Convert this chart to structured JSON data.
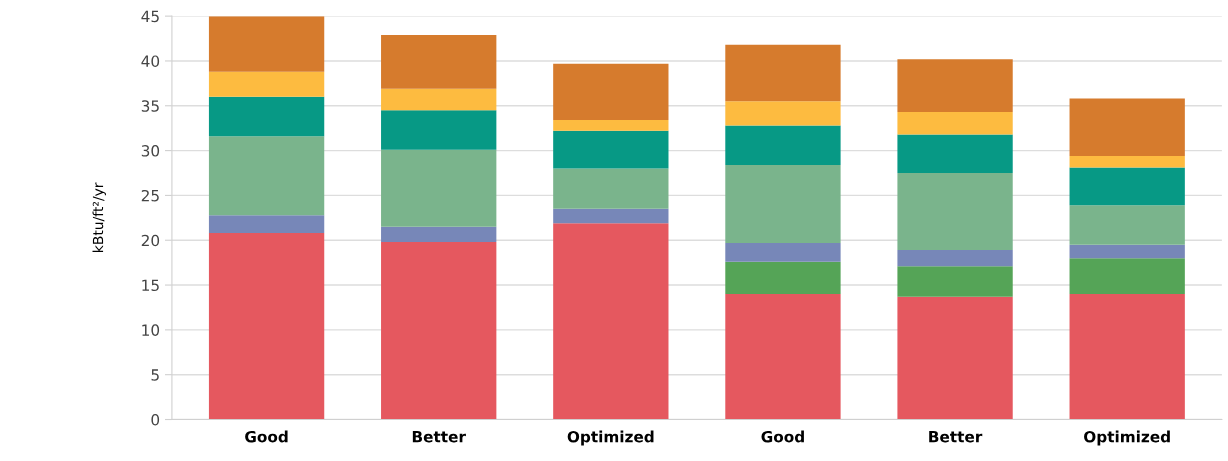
{
  "chart_data": {
    "type": "bar",
    "stacked": true,
    "ylabel": "kBtu/ft²/yr",
    "categories": [
      "Good",
      "Better",
      "Optimized",
      "Good",
      "Better",
      "Optimized"
    ],
    "series": [
      {
        "color": "#e5585f",
        "values": [
          20.8,
          19.8,
          21.9,
          14.0,
          13.7,
          14.0
        ]
      },
      {
        "color": "#55a457",
        "values": [
          null,
          null,
          null,
          3.6,
          3.4,
          4.0
        ]
      },
      {
        "color": "#7787b8",
        "values": [
          2.0,
          1.7,
          1.6,
          2.1,
          1.8,
          1.5
        ]
      },
      {
        "color": "#7ab48c",
        "values": [
          8.8,
          8.6,
          4.5,
          8.7,
          8.6,
          4.4
        ]
      },
      {
        "color": "#079985",
        "values": [
          4.4,
          4.4,
          4.2,
          4.4,
          4.3,
          4.2
        ]
      },
      {
        "color": "#fdbb40",
        "values": [
          2.8,
          2.4,
          1.2,
          2.7,
          2.5,
          1.3
        ]
      },
      {
        "color": "#d67b2d",
        "values": [
          6.2,
          6.0,
          6.3,
          6.3,
          5.9,
          6.4
        ]
      }
    ],
    "ylim": [
      0,
      45
    ],
    "yticks": [
      0,
      5,
      10,
      15,
      20,
      25,
      30,
      35,
      40,
      45
    ],
    "grid": "y"
  }
}
